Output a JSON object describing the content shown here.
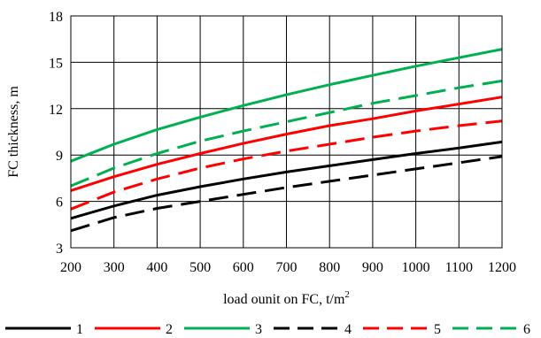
{
  "chart_data": {
    "type": "line",
    "title": "",
    "xlabel_main": "load ounit on FC, t/m",
    "xlabel_sup": "2",
    "ylabel": "FC thickness, m",
    "xlim": [
      200,
      1200
    ],
    "ylim": [
      3,
      18
    ],
    "x_ticks": [
      "200",
      "300",
      "400",
      "500",
      "600",
      "700",
      "800",
      "900",
      "1000",
      "1100",
      "1200"
    ],
    "y_ticks": [
      "3",
      "6",
      "9",
      "12",
      "15",
      "18"
    ],
    "grid": "on",
    "legend_position": "bottom",
    "x": [
      200,
      300,
      400,
      500,
      600,
      700,
      800,
      900,
      1000,
      1100,
      1200
    ],
    "series": [
      {
        "name": "1",
        "color": "#000000",
        "dash": "solid",
        "values": [
          4.9,
          5.7,
          6.4,
          6.95,
          7.45,
          7.9,
          8.3,
          8.7,
          9.1,
          9.45,
          9.85
        ]
      },
      {
        "name": "2",
        "color": "#ff0000",
        "dash": "solid",
        "values": [
          6.7,
          7.6,
          8.4,
          9.1,
          9.75,
          10.35,
          10.9,
          11.35,
          11.85,
          12.3,
          12.75
        ]
      },
      {
        "name": "3",
        "color": "#00b050",
        "dash": "solid",
        "values": [
          8.6,
          9.7,
          10.65,
          11.45,
          12.2,
          12.9,
          13.55,
          14.15,
          14.75,
          15.3,
          15.85
        ]
      },
      {
        "name": "4",
        "color": "#000000",
        "dash": "dashed",
        "values": [
          4.1,
          4.95,
          5.55,
          6.0,
          6.45,
          6.9,
          7.3,
          7.7,
          8.1,
          8.5,
          8.9
        ]
      },
      {
        "name": "5",
        "color": "#ff0000",
        "dash": "dashed",
        "values": [
          5.5,
          6.6,
          7.45,
          8.15,
          8.75,
          9.25,
          9.7,
          10.15,
          10.55,
          10.9,
          11.2
        ]
      },
      {
        "name": "6",
        "color": "#00b050",
        "dash": "dashed",
        "values": [
          7.0,
          8.15,
          9.1,
          9.9,
          10.55,
          11.15,
          11.75,
          12.35,
          12.85,
          13.35,
          13.8
        ]
      }
    ]
  }
}
